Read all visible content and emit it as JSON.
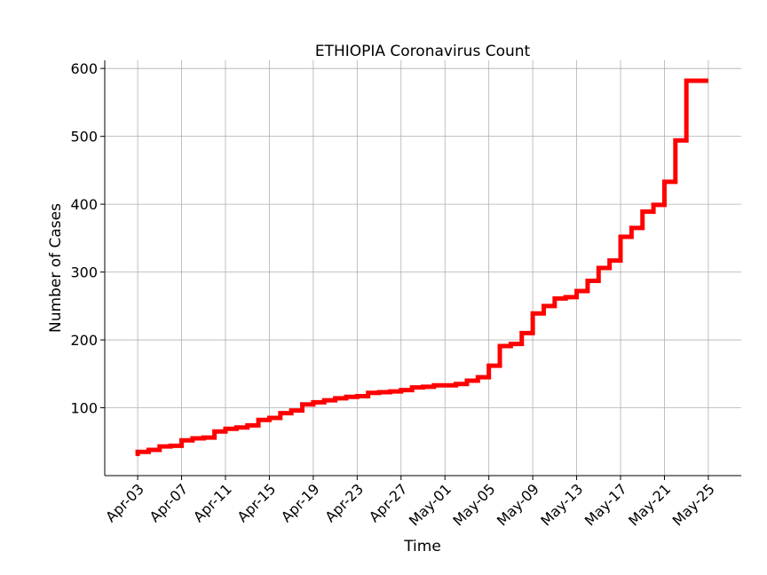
{
  "chart_data": {
    "type": "line",
    "step": "post",
    "title": "ETHIOPIA Coronavirus Count",
    "xlabel": "Time",
    "ylabel": "Number of Cases",
    "grid": true,
    "legend": "none",
    "color": "#ff0000",
    "xlim": [
      "2020-03-31",
      "2020-05-28"
    ],
    "ylim": [
      0,
      612
    ],
    "x_ticks": [
      "Apr-03",
      "Apr-07",
      "Apr-11",
      "Apr-15",
      "Apr-19",
      "Apr-23",
      "Apr-27",
      "May-01",
      "May-05",
      "May-09",
      "May-13",
      "May-17",
      "May-21",
      "May-25"
    ],
    "y_ticks": [
      "100",
      "200",
      "300",
      "400",
      "500",
      "600"
    ],
    "series": [
      {
        "dates": [
          "2020-04-03",
          "2020-04-04",
          "2020-04-05",
          "2020-04-06",
          "2020-04-07",
          "2020-04-08",
          "2020-04-09",
          "2020-04-10",
          "2020-04-11",
          "2020-04-12",
          "2020-04-13",
          "2020-04-14",
          "2020-04-15",
          "2020-04-16",
          "2020-04-17",
          "2020-04-18",
          "2020-04-19",
          "2020-04-20",
          "2020-04-21",
          "2020-04-22",
          "2020-04-23",
          "2020-04-24",
          "2020-04-25",
          "2020-04-26",
          "2020-04-27",
          "2020-04-28",
          "2020-04-29",
          "2020-04-30",
          "2020-05-01",
          "2020-05-02",
          "2020-05-03",
          "2020-05-04",
          "2020-05-05",
          "2020-05-06",
          "2020-05-07",
          "2020-05-08",
          "2020-05-09",
          "2020-05-10",
          "2020-05-11",
          "2020-05-12",
          "2020-05-13",
          "2020-05-14",
          "2020-05-15",
          "2020-05-16",
          "2020-05-17",
          "2020-05-18",
          "2020-05-19",
          "2020-05-20",
          "2020-05-21",
          "2020-05-22",
          "2020-05-23",
          "2020-05-24",
          "2020-05-25"
        ],
        "values": [
          35,
          38,
          43,
          44,
          52,
          55,
          56,
          65,
          69,
          71,
          74,
          82,
          85,
          92,
          96,
          105,
          108,
          111,
          114,
          116,
          117,
          122,
          123,
          124,
          126,
          130,
          131,
          133,
          133,
          135,
          140,
          145,
          162,
          191,
          194,
          210,
          239,
          250,
          261,
          263,
          272,
          287,
          306,
          317,
          352,
          365,
          389,
          399,
          433,
          494,
          582,
          582,
          582
        ]
      }
    ]
  }
}
